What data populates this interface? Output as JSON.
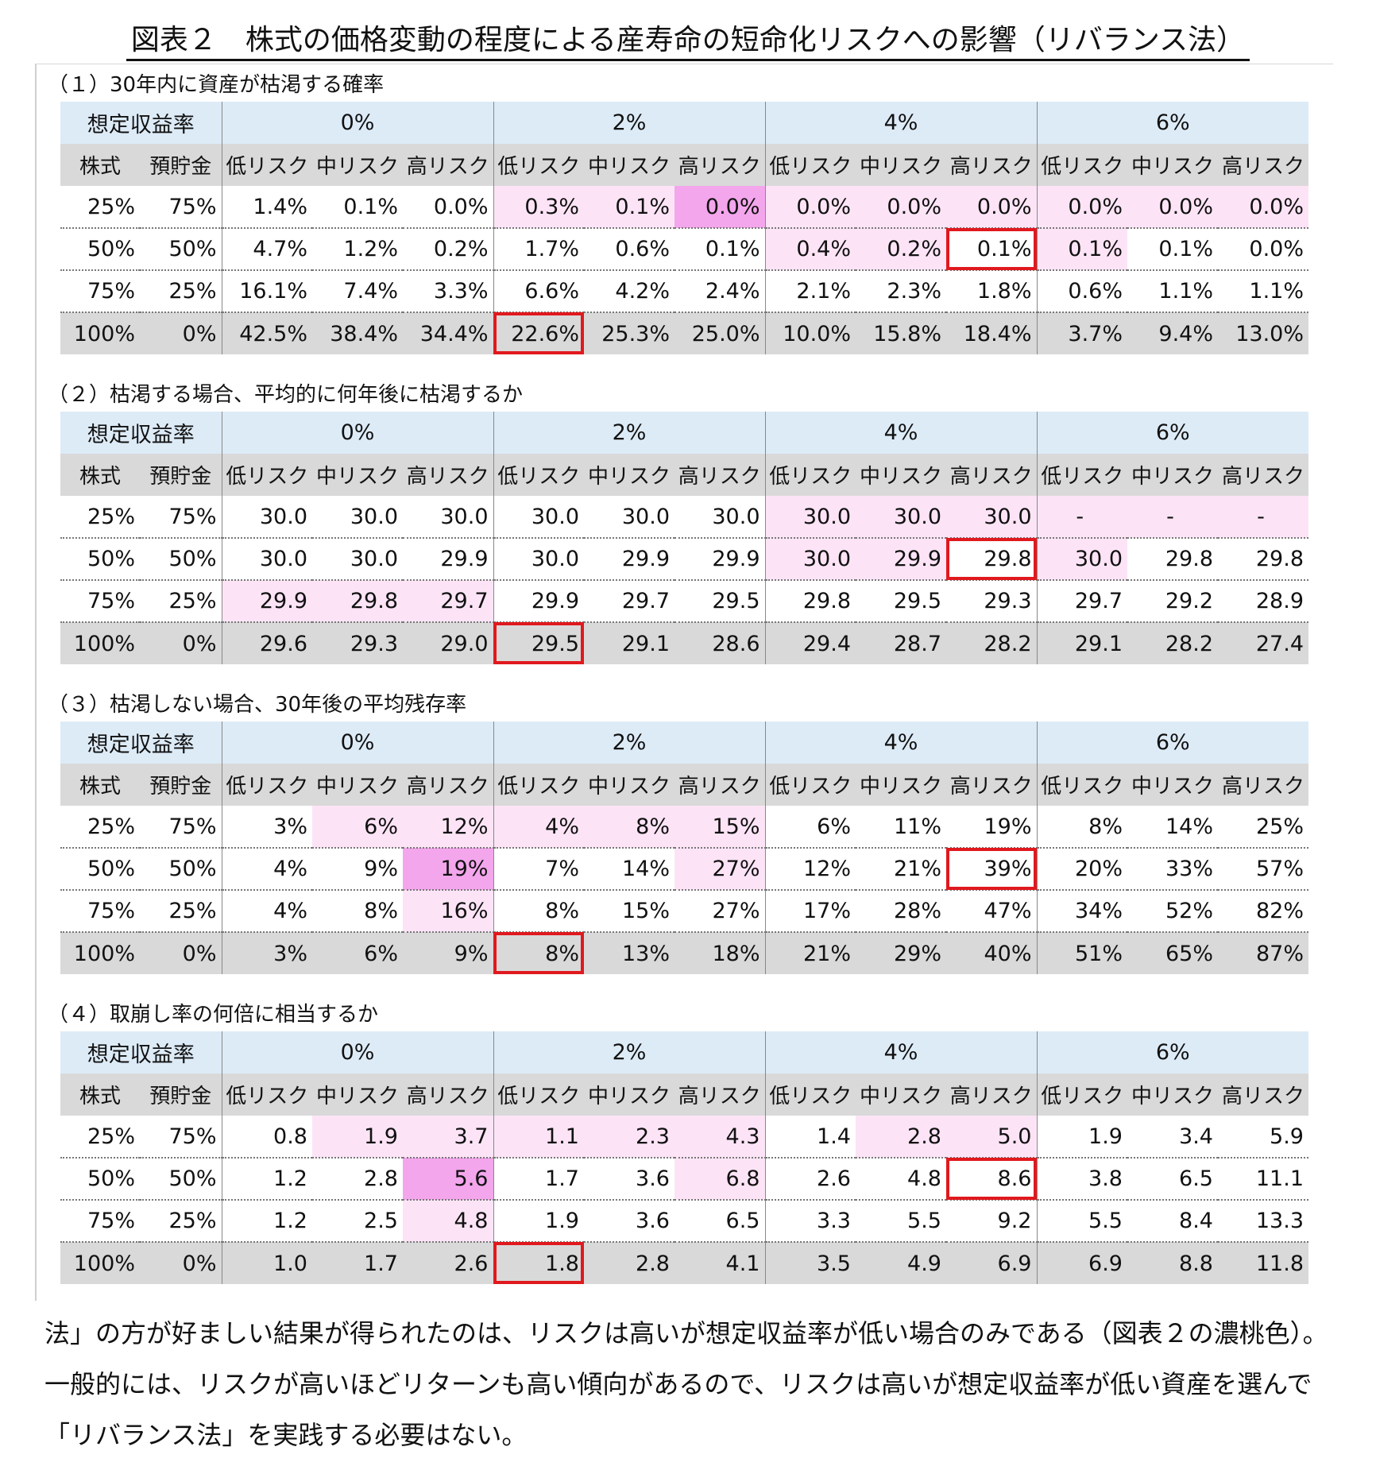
{
  "title": "図表２　株式の価格変動の程度による産寿命の短命化リスクへの影響（リバランス法）",
  "header": {
    "rate_label": "想定収益率",
    "stock_label": "株式",
    "savings_label": "預貯金",
    "rates": [
      "0%",
      "2%",
      "4%",
      "6%"
    ],
    "risks": [
      "低リスク",
      "中リスク",
      "高リスク"
    ]
  },
  "sections": [
    {
      "title": "（１）30年内に資産が枯渇する確率",
      "rows": [
        {
          "stock": "25%",
          "savings": "75%",
          "values": [
            "1.4%",
            "0.1%",
            "0.0%",
            "0.3%",
            "0.1%",
            "0.0%",
            "0.0%",
            "0.0%",
            "0.0%",
            "0.0%",
            "0.0%",
            "0.0%"
          ]
        },
        {
          "stock": "50%",
          "savings": "50%",
          "values": [
            "4.7%",
            "1.2%",
            "0.2%",
            "1.7%",
            "0.6%",
            "0.1%",
            "0.4%",
            "0.2%",
            "0.1%",
            "0.1%",
            "0.1%",
            "0.0%"
          ]
        },
        {
          "stock": "75%",
          "savings": "25%",
          "values": [
            "16.1%",
            "7.4%",
            "3.3%",
            "6.6%",
            "4.2%",
            "2.4%",
            "2.1%",
            "2.3%",
            "1.8%",
            "0.6%",
            "1.1%",
            "1.1%"
          ]
        },
        {
          "stock": "100%",
          "savings": "0%",
          "values": [
            "42.5%",
            "38.4%",
            "34.4%",
            "22.6%",
            "25.3%",
            "25.0%",
            "10.0%",
            "15.8%",
            "18.4%",
            "3.7%",
            "9.4%",
            "13.0%"
          ]
        }
      ],
      "shading": [
        [
          "",
          "",
          "",
          "light",
          "light",
          "dark",
          "light",
          "light",
          "light",
          "light",
          "light",
          "light"
        ],
        [
          "",
          "",
          "",
          "",
          "",
          "",
          "light",
          "light",
          "",
          "light",
          "",
          ""
        ],
        [
          "",
          "",
          "",
          "",
          "",
          "",
          "",
          "",
          "",
          "",
          "",
          ""
        ],
        [
          "",
          "",
          "",
          "",
          "",
          "",
          "",
          "",
          "",
          "",
          "",
          ""
        ]
      ],
      "highlighted_cells": [
        [
          1,
          8
        ],
        [
          3,
          3
        ]
      ]
    },
    {
      "title": "（２）枯渇する場合、平均的に何年後に枯渇するか",
      "rows": [
        {
          "stock": "25%",
          "savings": "75%",
          "values": [
            "30.0",
            "30.0",
            "30.0",
            "30.0",
            "30.0",
            "30.0",
            "30.0",
            "30.0",
            "30.0",
            "-",
            "-",
            "-"
          ]
        },
        {
          "stock": "50%",
          "savings": "50%",
          "values": [
            "30.0",
            "30.0",
            "29.9",
            "30.0",
            "29.9",
            "29.9",
            "30.0",
            "29.9",
            "29.8",
            "30.0",
            "29.8",
            "29.8"
          ]
        },
        {
          "stock": "75%",
          "savings": "25%",
          "values": [
            "29.9",
            "29.8",
            "29.7",
            "29.9",
            "29.7",
            "29.5",
            "29.8",
            "29.5",
            "29.3",
            "29.7",
            "29.2",
            "28.9"
          ]
        },
        {
          "stock": "100%",
          "savings": "0%",
          "values": [
            "29.6",
            "29.3",
            "29.0",
            "29.5",
            "29.1",
            "28.6",
            "29.4",
            "28.7",
            "28.2",
            "29.1",
            "28.2",
            "27.4"
          ]
        }
      ],
      "shading": [
        [
          "",
          "",
          "",
          "",
          "",
          "",
          "light",
          "light",
          "light",
          "light",
          "light",
          "light"
        ],
        [
          "",
          "",
          "",
          "",
          "",
          "",
          "light",
          "light",
          "",
          "light",
          "",
          ""
        ],
        [
          "light",
          "light",
          "light",
          "",
          "",
          "",
          "",
          "",
          "",
          "",
          "",
          ""
        ],
        [
          "",
          "",
          "",
          "",
          "",
          "",
          "",
          "",
          "",
          "",
          "",
          ""
        ]
      ],
      "highlighted_cells": [
        [
          1,
          8
        ],
        [
          3,
          3
        ]
      ]
    },
    {
      "title": "（３）枯渇しない場合、30年後の平均残存率",
      "rows": [
        {
          "stock": "25%",
          "savings": "75%",
          "values": [
            "3%",
            "6%",
            "12%",
            "4%",
            "8%",
            "15%",
            "6%",
            "11%",
            "19%",
            "8%",
            "14%",
            "25%"
          ]
        },
        {
          "stock": "50%",
          "savings": "50%",
          "values": [
            "4%",
            "9%",
            "19%",
            "7%",
            "14%",
            "27%",
            "12%",
            "21%",
            "39%",
            "20%",
            "33%",
            "57%"
          ]
        },
        {
          "stock": "75%",
          "savings": "25%",
          "values": [
            "4%",
            "8%",
            "16%",
            "8%",
            "15%",
            "27%",
            "17%",
            "28%",
            "47%",
            "34%",
            "52%",
            "82%"
          ]
        },
        {
          "stock": "100%",
          "savings": "0%",
          "values": [
            "3%",
            "6%",
            "9%",
            "8%",
            "13%",
            "18%",
            "21%",
            "29%",
            "40%",
            "51%",
            "65%",
            "87%"
          ]
        }
      ],
      "shading": [
        [
          "",
          "light",
          "light",
          "light",
          "light",
          "light",
          "",
          "",
          "",
          "",
          "",
          ""
        ],
        [
          "",
          "",
          "dark",
          "",
          "",
          "light",
          "",
          "",
          "",
          "",
          "",
          ""
        ],
        [
          "",
          "",
          "light",
          "",
          "",
          "",
          "",
          "",
          "",
          "",
          "",
          ""
        ],
        [
          "",
          "",
          "",
          "",
          "",
          "",
          "",
          "",
          "",
          "",
          "",
          ""
        ]
      ],
      "highlighted_cells": [
        [
          1,
          8
        ],
        [
          3,
          3
        ]
      ]
    },
    {
      "title": "（４）取崩し率の何倍に相当するか",
      "rows": [
        {
          "stock": "25%",
          "savings": "75%",
          "values": [
            "0.8",
            "1.9",
            "3.7",
            "1.1",
            "2.3",
            "4.3",
            "1.4",
            "2.8",
            "5.0",
            "1.9",
            "3.4",
            "5.9"
          ]
        },
        {
          "stock": "50%",
          "savings": "50%",
          "values": [
            "1.2",
            "2.8",
            "5.6",
            "1.7",
            "3.6",
            "6.8",
            "2.6",
            "4.8",
            "8.6",
            "3.8",
            "6.5",
            "11.1"
          ]
        },
        {
          "stock": "75%",
          "savings": "25%",
          "values": [
            "1.2",
            "2.5",
            "4.8",
            "1.9",
            "3.6",
            "6.5",
            "3.3",
            "5.5",
            "9.2",
            "5.5",
            "8.4",
            "13.3"
          ]
        },
        {
          "stock": "100%",
          "savings": "0%",
          "values": [
            "1.0",
            "1.7",
            "2.6",
            "1.8",
            "2.8",
            "4.1",
            "3.5",
            "4.9",
            "6.9",
            "6.9",
            "8.8",
            "11.8"
          ]
        }
      ],
      "shading": [
        [
          "",
          "light",
          "light",
          "light",
          "light",
          "light",
          "",
          "light",
          "light",
          "",
          "",
          ""
        ],
        [
          "",
          "",
          "dark",
          "",
          "",
          "light",
          "",
          "",
          "",
          "",
          "",
          ""
        ],
        [
          "",
          "",
          "light",
          "",
          "",
          "",
          "",
          "",
          "",
          "",
          "",
          ""
        ],
        [
          "",
          "",
          "",
          "",
          "",
          "",
          "",
          "",
          "",
          "",
          "",
          ""
        ]
      ],
      "highlighted_cells": [
        [
          1,
          8
        ],
        [
          3,
          3
        ]
      ]
    }
  ],
  "colors": {
    "header_blue": "#ddebf7",
    "header_gray": "#d9d9d9",
    "light_pink": "#fce4f6",
    "dark_pink": "#f3a6ec",
    "highlight_red": "#e0191e"
  },
  "body_text": "法」の方が好ましい結果が得られたのは、リスクは高いが想定収益率が低い場合のみである（図表２の濃桃色）。一般的には、リスクが高いほどリターンも高い傾向があるので、リスクは高いが想定収益率が低い資産を選んで「リバランス法」を実践する必要はない。"
}
